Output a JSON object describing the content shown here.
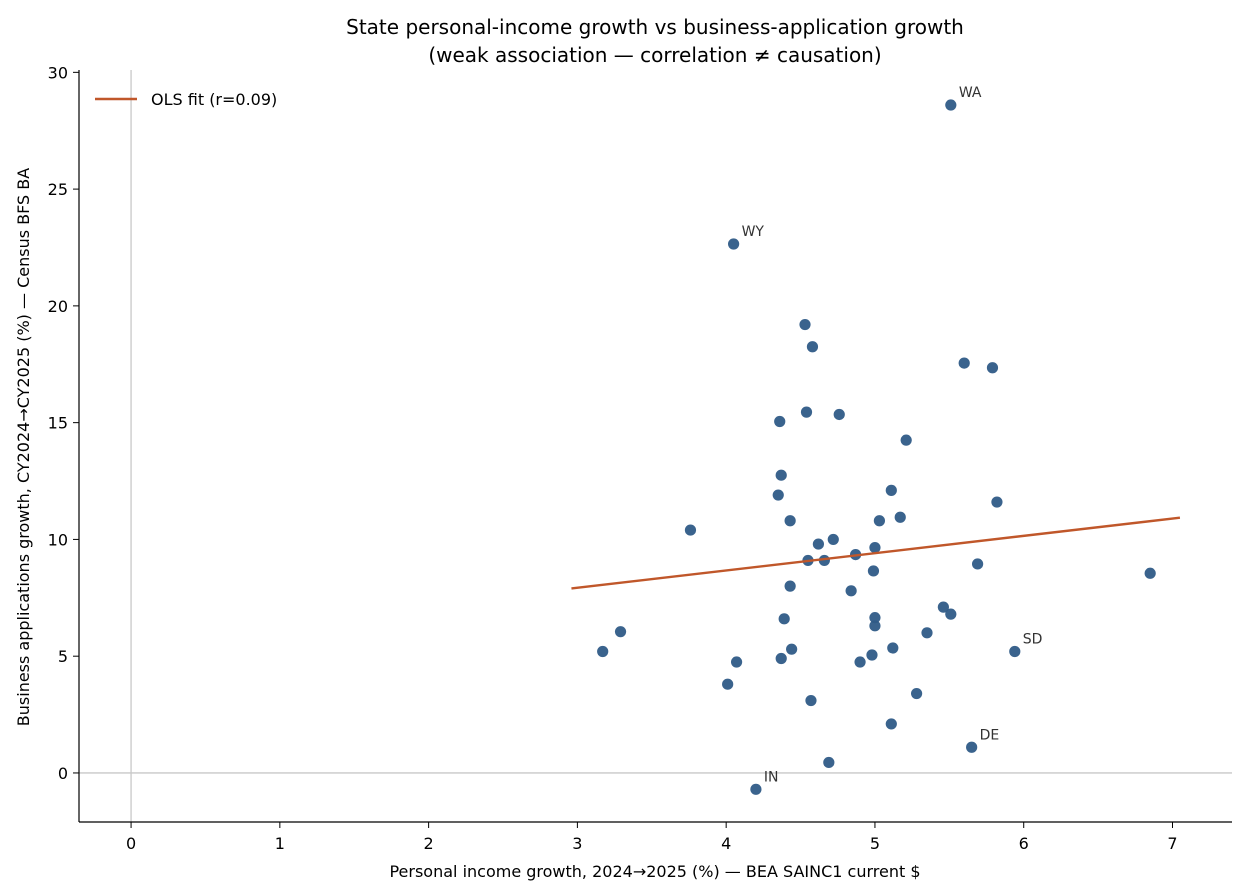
{
  "chart_data": {
    "type": "scatter",
    "title": "State personal-income growth vs business-application growth",
    "subtitle": "(weak association — correlation ≠ causation)",
    "xlabel": "Personal income growth, 2024→2025 (%) — BEA SAINC1 current $",
    "ylabel": "Business applications growth, CY2024→CY2025 (%) — Census BFS BA",
    "xlim": [
      -0.35,
      7.4
    ],
    "ylim": [
      -2.1,
      30.1
    ],
    "x_ticks": [
      0,
      1,
      2,
      3,
      4,
      5,
      6,
      7
    ],
    "y_ticks": [
      0,
      5,
      10,
      15,
      20,
      25,
      30
    ],
    "reference_lines": {
      "x": 0,
      "y": 0,
      "color": "#c8c8c8"
    },
    "grid": false,
    "legend": {
      "position": "top-left",
      "entries": [
        {
          "label": "OLS fit (r=0.09)",
          "color": "#c0572a"
        }
      ]
    },
    "fit_line": {
      "label": "OLS fit (r=0.09)",
      "color": "#c0572a",
      "x": [
        2.96,
        7.05
      ],
      "y": [
        7.9,
        10.93
      ]
    },
    "point_color": "#2f5b87",
    "series": [
      {
        "points": [
          {
            "x": 5.51,
            "y": 28.6,
            "label": "WA"
          },
          {
            "x": 4.05,
            "y": 22.65,
            "label": "WY"
          },
          {
            "x": 4.53,
            "y": 19.2
          },
          {
            "x": 4.58,
            "y": 18.25
          },
          {
            "x": 5.6,
            "y": 17.55
          },
          {
            "x": 5.79,
            "y": 17.35
          },
          {
            "x": 4.54,
            "y": 15.45
          },
          {
            "x": 4.76,
            "y": 15.35
          },
          {
            "x": 4.36,
            "y": 15.05
          },
          {
            "x": 5.21,
            "y": 14.25
          },
          {
            "x": 4.37,
            "y": 12.75
          },
          {
            "x": 5.11,
            "y": 12.1
          },
          {
            "x": 4.35,
            "y": 11.9
          },
          {
            "x": 5.82,
            "y": 11.6
          },
          {
            "x": 4.43,
            "y": 10.8
          },
          {
            "x": 5.03,
            "y": 10.8
          },
          {
            "x": 5.17,
            "y": 10.95
          },
          {
            "x": 3.76,
            "y": 10.4
          },
          {
            "x": 4.72,
            "y": 10.0
          },
          {
            "x": 4.62,
            "y": 9.8
          },
          {
            "x": 5.0,
            "y": 9.65
          },
          {
            "x": 4.87,
            "y": 9.35
          },
          {
            "x": 4.55,
            "y": 9.1
          },
          {
            "x": 4.66,
            "y": 9.1
          },
          {
            "x": 5.69,
            "y": 8.95
          },
          {
            "x": 4.99,
            "y": 8.65
          },
          {
            "x": 6.85,
            "y": 8.55
          },
          {
            "x": 4.43,
            "y": 8.0
          },
          {
            "x": 4.84,
            "y": 7.8
          },
          {
            "x": 5.46,
            "y": 7.1
          },
          {
            "x": 5.51,
            "y": 6.8
          },
          {
            "x": 4.39,
            "y": 6.6
          },
          {
            "x": 5.0,
            "y": 6.65
          },
          {
            "x": 5.0,
            "y": 6.3
          },
          {
            "x": 3.29,
            "y": 6.05
          },
          {
            "x": 5.35,
            "y": 6.0
          },
          {
            "x": 5.12,
            "y": 5.35
          },
          {
            "x": 4.44,
            "y": 5.3
          },
          {
            "x": 3.17,
            "y": 5.2
          },
          {
            "x": 5.94,
            "y": 5.2,
            "label": "SD"
          },
          {
            "x": 4.98,
            "y": 5.05
          },
          {
            "x": 4.37,
            "y": 4.9
          },
          {
            "x": 4.07,
            "y": 4.75
          },
          {
            "x": 4.9,
            "y": 4.75
          },
          {
            "x": 4.01,
            "y": 3.8
          },
          {
            "x": 5.28,
            "y": 3.4
          },
          {
            "x": 4.57,
            "y": 3.1
          },
          {
            "x": 5.11,
            "y": 2.1
          },
          {
            "x": 5.65,
            "y": 1.1,
            "label": "DE"
          },
          {
            "x": 4.69,
            "y": 0.45
          },
          {
            "x": 4.2,
            "y": -0.7,
            "label": "IN"
          }
        ]
      }
    ]
  }
}
